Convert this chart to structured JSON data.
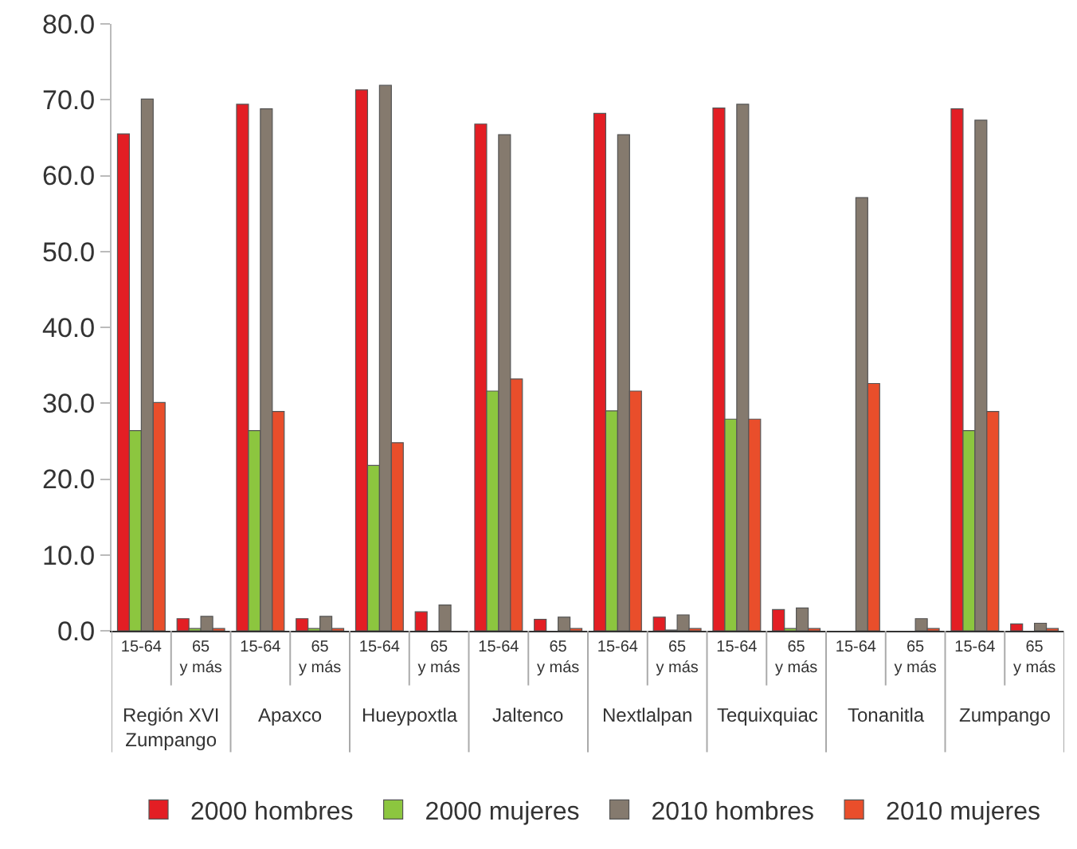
{
  "chart_data": {
    "type": "bar",
    "categories": [
      "15-64",
      "65 y más",
      "15-64",
      "65 y más",
      "15-64",
      "65 y más",
      "15-64",
      "65 y más",
      "15-64",
      "65 y más",
      "15-64",
      "65 y más",
      "15-64",
      "65 y más",
      "15-64",
      "65 y más"
    ],
    "series": [
      {
        "name": "2000 hombres",
        "color": "#e31e24",
        "values": [
          65.5,
          1.6,
          69.4,
          1.6,
          71.3,
          2.5,
          66.8,
          1.5,
          68.2,
          1.8,
          68.9,
          2.8,
          null,
          null,
          68.8,
          0.9
        ]
      },
      {
        "name": "2000 mujeres",
        "color": "#8cc63f",
        "values": [
          26.4,
          0.3,
          26.4,
          0.3,
          21.8,
          null,
          31.6,
          null,
          29.0,
          0.1,
          27.9,
          0.3,
          null,
          null,
          26.4,
          null
        ]
      },
      {
        "name": "2010 hombres",
        "color": "#857a6e",
        "values": [
          70.1,
          1.9,
          68.8,
          1.9,
          71.9,
          3.4,
          65.4,
          1.8,
          65.4,
          2.1,
          69.4,
          3.0,
          57.1,
          1.6,
          67.3,
          1.0
        ]
      },
      {
        "name": "2010 mujeres",
        "color": "#e94e2b",
        "values": [
          30.1,
          0.3,
          28.9,
          0.3,
          24.8,
          null,
          33.2,
          0.3,
          31.6,
          0.3,
          27.9,
          0.3,
          32.6,
          0.3,
          28.9,
          0.3
        ]
      }
    ],
    "annotations": [
      "Región XVI Zumpango",
      "Apaxco",
      "Hueypoxtla",
      "Jaltenco",
      "Nextlalpan",
      "Tequixquiac",
      "Tonanitla",
      "Zumpango"
    ],
    "ylim": [
      0,
      80
    ],
    "yticks": [
      {
        "value": 0,
        "label": "0.0"
      },
      {
        "value": 10,
        "label": "10.0"
      },
      {
        "value": 20,
        "label": "20.0"
      },
      {
        "value": 30,
        "label": "30.0"
      },
      {
        "value": 40,
        "label": "40.0"
      },
      {
        "value": 50,
        "label": "50.0"
      },
      {
        "value": 60,
        "label": "60.0"
      },
      {
        "value": 70,
        "label": "70.0"
      },
      {
        "value": 80,
        "label": "80.0"
      }
    ],
    "grid": false,
    "legend": "bottom"
  }
}
